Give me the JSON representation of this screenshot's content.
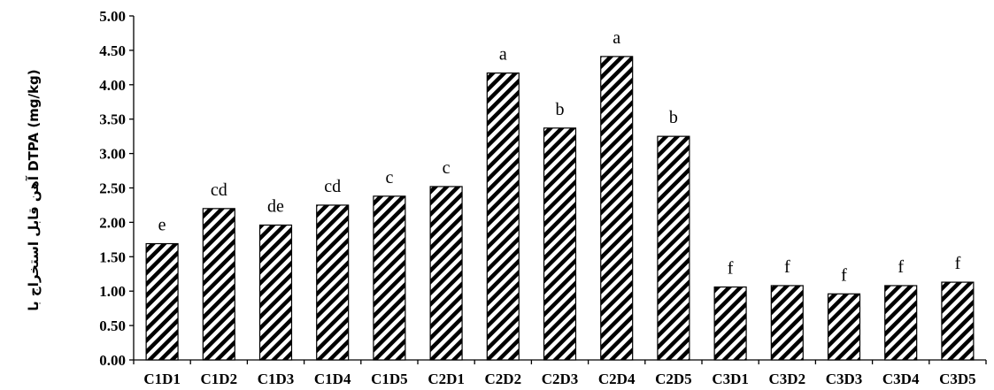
{
  "chart_data": {
    "type": "bar",
    "title": "",
    "xlabel": "",
    "ylabel": "آهن قابل استخراج با DTPA (mg/kg)",
    "ylim": [
      0,
      5
    ],
    "yticks": [
      "0.00",
      "0.50",
      "1.00",
      "1.50",
      "2.00",
      "2.50",
      "3.00",
      "3.50",
      "4.00",
      "4.50",
      "5.00"
    ],
    "grid": false,
    "legend": "none",
    "bar_fill": "diagonal-hatch",
    "colors": {
      "bar_stroke": "#000000",
      "hatch": "#000000",
      "background": "#ffffff"
    },
    "categories": [
      "C1D1",
      "C1D2",
      "C1D3",
      "C1D4",
      "C1D5",
      "C2D1",
      "C2D2",
      "C2D3",
      "C2D4",
      "C2D5",
      "C3D1",
      "C3D2",
      "C3D3",
      "C3D4",
      "C3D5"
    ],
    "values": [
      1.69,
      2.2,
      1.96,
      2.25,
      2.38,
      2.52,
      4.17,
      3.37,
      4.41,
      3.25,
      1.06,
      1.08,
      0.96,
      1.08,
      1.13
    ],
    "annotations": [
      "e",
      "cd",
      "de",
      "cd",
      "c",
      "c",
      "a",
      "b",
      "a",
      "b",
      "f",
      "f",
      "f",
      "f",
      "f"
    ]
  }
}
